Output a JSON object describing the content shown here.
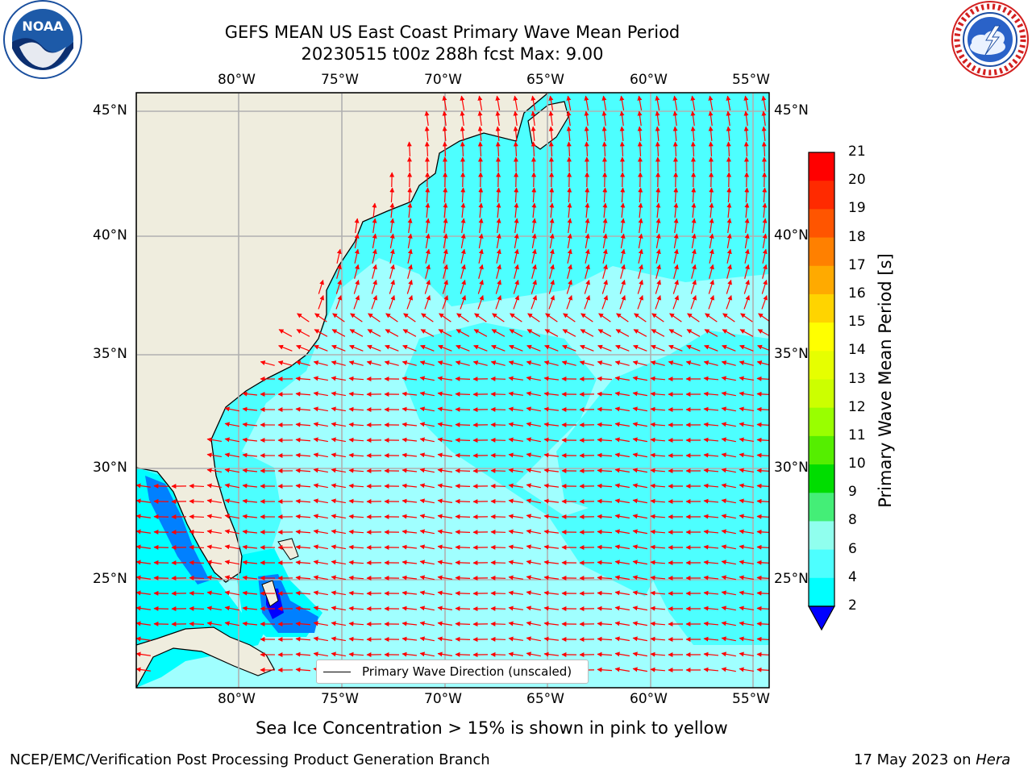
{
  "header": {
    "title_line1": "GEFS MEAN US East Coast Primary Wave Mean Period",
    "title_line2": "20230515 t00z 288h fcst   Max: 9.00"
  },
  "map": {
    "lon_labels": [
      "80°W",
      "75°W",
      "70°W",
      "65°W",
      "60°W",
      "55°W"
    ],
    "lat_labels": [
      "45°N",
      "40°N",
      "35°N",
      "30°N",
      "25°N"
    ],
    "legend_label": "Primary Wave Direction (unscaled)",
    "colors": {
      "land": "#efedde",
      "ocean_4_6": "#00ffff",
      "ocean_6_8": "#4dffff",
      "ocean_8_9": "#a0ffff",
      "ocean_2_4": "#0080ff",
      "ocean_lt2": "#0000ff",
      "arrows": "#ff0000",
      "grid": "#b0b0b0"
    }
  },
  "colorbar": {
    "label": "Primary Wave Mean Period [s]",
    "ticks": [
      "21",
      "20",
      "19",
      "18",
      "17",
      "16",
      "15",
      "14",
      "13",
      "12",
      "11",
      "10",
      "9",
      "8",
      "6",
      "4",
      "2"
    ],
    "colors": [
      "#ff0000",
      "#ff2a00",
      "#ff5500",
      "#ff8000",
      "#ffaa00",
      "#ffd400",
      "#ffff00",
      "#e6ff00",
      "#ccff00",
      "#99ff00",
      "#55ee00",
      "#00dd00",
      "#44ee77",
      "#90ffee",
      "#4dffff",
      "#00ffff",
      "#0080ff",
      "#0000ff"
    ]
  },
  "footer": {
    "note": "Sea Ice Concentration > 15% is shown in pink to yellow",
    "credit": "NCEP/EMC/Verification Post Processing Product Generation Branch",
    "date": "17 May 2023 on ",
    "host": "Hera"
  },
  "logos": {
    "left": "noaa-logo",
    "right": "nws-logo"
  }
}
